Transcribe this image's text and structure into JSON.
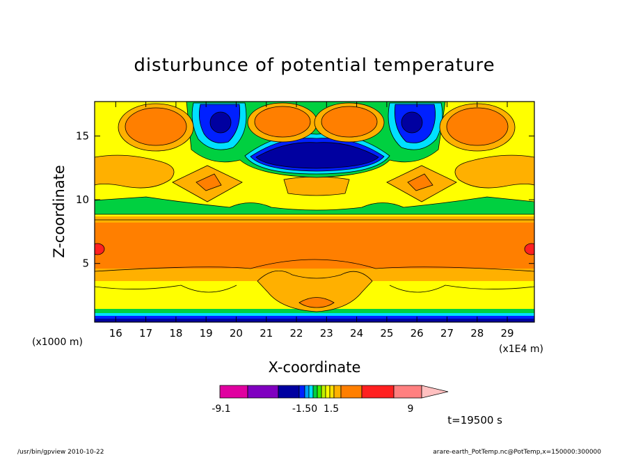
{
  "chart_data": {
    "type": "heatmap",
    "title": "disturbunce of potential temperature",
    "xlabel": "X-coordinate",
    "ylabel": "Z-coordinate",
    "x_ticks": [
      "16",
      "17",
      "18",
      "19",
      "20",
      "21",
      "22",
      "23",
      "24",
      "25",
      "26",
      "27",
      "28",
      "29"
    ],
    "y_ticks": [
      "5",
      "10",
      "15"
    ],
    "xlim": [
      15.3,
      29.9
    ],
    "ylim": [
      0.4,
      17.7
    ],
    "x_unit_left": "(x1000 m)",
    "x_unit_right": "(x1E4 m)",
    "time_label": "t=19500 s",
    "colorbar": {
      "labels": [
        "-9.1",
        "-1.50",
        "1.5",
        "9"
      ],
      "colors": [
        "#e000a0",
        "#8000c0",
        "#0000a0",
        "#0020ff",
        "#00a0ff",
        "#00e0ff",
        "#00d040",
        "#40f000",
        "#c0f000",
        "#ffff00",
        "#ffe000",
        "#ffb000",
        "#ff7f00",
        "#ff2020",
        "#ff8080",
        "#ffc0c0"
      ],
      "triangle_color": "#ffc0c0"
    },
    "colors": {
      "base": "#ffff00",
      "orange": "#ff7f00",
      "light_orange": "#ffb000",
      "green": "#00d040",
      "cyan": "#00e0ff",
      "blue": "#0020ff",
      "navy": "#0000a0",
      "red": "#ff2020"
    }
  },
  "footer": {
    "left": "/usr/bin/gpview  2010-10-22",
    "right": "arare-earth_PotTemp.nc@PotTemp,x=150000:300000"
  }
}
